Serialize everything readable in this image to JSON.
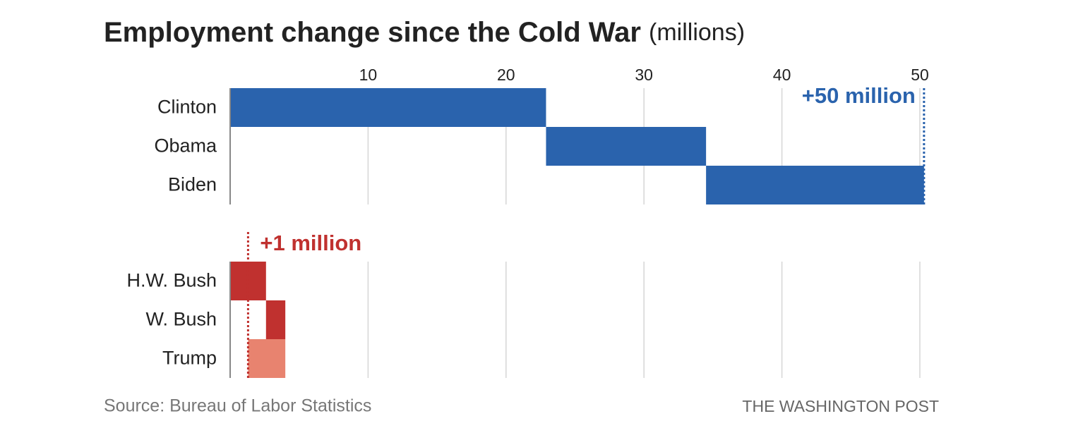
{
  "header": {
    "title": "Employment change since the Cold War",
    "subtitle": "(millions)",
    "source": "Source: Bureau of Labor Statistics",
    "credit": "THE WASHINGTON POST"
  },
  "chart_data": [
    {
      "type": "waterfall",
      "categories": [
        "Clinton",
        "Obama",
        "Biden"
      ],
      "values": [
        22.9,
        11.6,
        15.8
      ],
      "colors": [
        "#2a63ad",
        "#2a63ad",
        "#2a63ad"
      ],
      "xlim": [
        0,
        50
      ],
      "xticks": [
        10,
        20,
        30,
        40,
        50
      ],
      "tick_labels": true,
      "total": 50.3,
      "annotation": "+50 million",
      "annotation_color": "#2a63ad"
    },
    {
      "type": "waterfall",
      "categories": [
        "H.W. Bush",
        "W. Bush",
        "Trump"
      ],
      "values": [
        2.6,
        1.4,
        -2.7
      ],
      "colors": [
        "#c0312f",
        "#c0312f",
        "#e8836f"
      ],
      "xlim": [
        0,
        50
      ],
      "xticks": [
        10,
        20,
        30,
        40,
        50
      ],
      "tick_labels": false,
      "total": 1.3,
      "annotation": "+1 million",
      "annotation_color": "#c0312f"
    }
  ]
}
